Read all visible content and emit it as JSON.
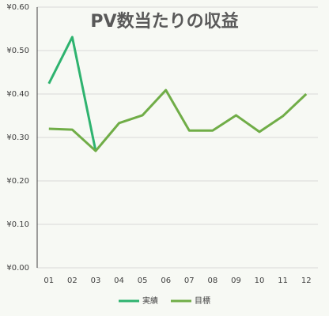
{
  "chart_data": {
    "type": "line",
    "title": "PV数当たりの収益",
    "categories": [
      "01",
      "02",
      "03",
      "04",
      "05",
      "06",
      "07",
      "08",
      "09",
      "10",
      "11",
      "12"
    ],
    "series": [
      {
        "name": "実績",
        "color": "#2eb36f",
        "values": [
          0.424,
          0.531,
          0.269,
          null,
          null,
          null,
          null,
          null,
          null,
          null,
          null,
          null
        ]
      },
      {
        "name": "目標",
        "color": "#70ad47",
        "values": [
          0.32,
          0.318,
          0.269,
          0.333,
          0.351,
          0.409,
          0.316,
          0.316,
          0.351,
          0.313,
          0.349,
          0.4
        ]
      }
    ],
    "ylim": [
      0,
      0.6
    ],
    "yticks": [
      {
        "value": 0,
        "label": "¥0.00"
      },
      {
        "value": 0.1,
        "label": "¥0.10"
      },
      {
        "value": 0.2,
        "label": "¥0.20"
      },
      {
        "value": 0.3,
        "label": "¥0.30"
      },
      {
        "value": 0.4,
        "label": "¥0.40"
      },
      {
        "value": 0.5,
        "label": "¥0.50"
      },
      {
        "value": 0.6,
        "label": "¥0.60"
      }
    ],
    "grid": true,
    "legend": "bottom"
  }
}
